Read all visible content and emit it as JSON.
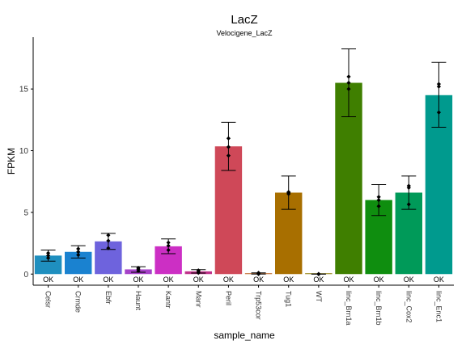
{
  "chart_data": {
    "type": "bar",
    "title": "LacZ",
    "subtitle": "Velocigene_LacZ",
    "xlabel": "sample_name",
    "ylabel": "FPKM",
    "ylim": [
      -0.9,
      19.2
    ],
    "yticks": [
      0,
      5,
      10,
      15
    ],
    "grid": false,
    "legend": "none",
    "status_label": "OK",
    "categories": [
      "Celsr",
      "Crmde",
      "Ebfr",
      "Haunt",
      "Kantr",
      "Manr",
      "Peril",
      "Trp53cor",
      "Tug1",
      "WT",
      "linc_Brn1a",
      "linc_Brn1b",
      "linc_Cox2",
      "linc_Enc1"
    ],
    "values": [
      1.5,
      1.8,
      2.65,
      0.38,
      2.25,
      0.22,
      10.35,
      0.05,
      6.6,
      0.0,
      15.5,
      6.0,
      6.6,
      14.5
    ],
    "error_low": [
      1.05,
      1.3,
      2.0,
      0.15,
      1.65,
      0.08,
      8.4,
      0.0,
      5.25,
      0.0,
      12.75,
      4.75,
      5.25,
      11.9
    ],
    "error_high": [
      1.95,
      2.3,
      3.3,
      0.6,
      2.85,
      0.36,
      12.3,
      0.1,
      7.95,
      0.0,
      18.25,
      7.25,
      7.95,
      17.15
    ],
    "points": [
      [
        1.3,
        1.5,
        1.7
      ],
      [
        1.55,
        1.8,
        2.05
      ],
      [
        2.1,
        2.7,
        3.15
      ],
      [
        0.25,
        0.4,
        0.5
      ],
      [
        1.95,
        2.3,
        2.55
      ],
      [
        0.1,
        0.2,
        0.3
      ],
      [
        9.6,
        10.3,
        11.0
      ],
      [
        0.0,
        0.05,
        0.1
      ],
      [
        6.5,
        6.6,
        6.65
      ],
      [
        0.0,
        0.0,
        0.0
      ],
      [
        15.0,
        15.5,
        16.0
      ],
      [
        5.5,
        6.0,
        6.25
      ],
      [
        5.65,
        7.0,
        7.15
      ],
      [
        13.1,
        15.2,
        15.4
      ]
    ],
    "colors": [
      "#1f8fbf",
      "#1a82d0",
      "#6e63dd",
      "#a642c8",
      "#cc2fc4",
      "#c0338b",
      "#cf4858",
      "#b85a18",
      "#a86f00",
      "#8a7800",
      "#3f7f00",
      "#0f8e0f",
      "#009a59",
      "#009a8e"
    ]
  }
}
